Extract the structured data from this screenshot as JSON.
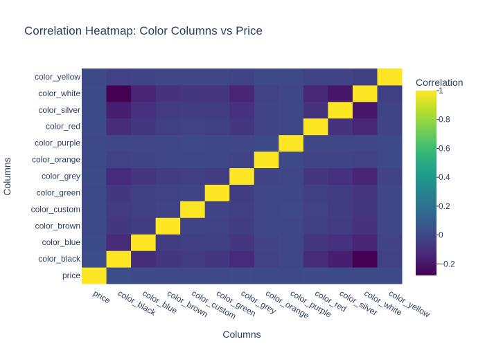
{
  "chart_data": {
    "type": "heatmap",
    "title": "Correlation Heatmap: Color Columns vs Price",
    "xlabel": "Columns",
    "ylabel": "Columns",
    "colorbar_title": "Correlation",
    "colorbar_ticks": [
      "1",
      "0.8",
      "0.6",
      "0.4",
      "0.2",
      "0",
      "−0.2"
    ],
    "colorbar_tick_values": [
      1,
      0.8,
      0.6,
      0.4,
      0.2,
      0,
      -0.2
    ],
    "zlim": [
      -0.28,
      1
    ],
    "colorscale": "Viridis",
    "categories": [
      "price",
      "color_black",
      "color_blue",
      "color_brown",
      "color_custom",
      "color_green",
      "color_grey",
      "color_orange",
      "color_purple",
      "color_red",
      "color_silver",
      "color_white",
      "color_yellow"
    ],
    "matrix": [
      [
        1.0,
        0.02,
        0.01,
        0.0,
        0.0,
        0.0,
        0.01,
        0.0,
        0.0,
        0.01,
        0.01,
        0.01,
        0.0
      ],
      [
        0.02,
        1.0,
        -0.12,
        -0.07,
        -0.06,
        -0.07,
        -0.13,
        -0.03,
        -0.01,
        -0.12,
        -0.17,
        -0.28,
        -0.03
      ],
      [
        0.01,
        -0.12,
        1.0,
        -0.05,
        -0.04,
        -0.04,
        -0.08,
        -0.02,
        -0.01,
        -0.07,
        -0.1,
        -0.15,
        -0.02
      ],
      [
        0.0,
        -0.07,
        -0.05,
        1.0,
        -0.02,
        -0.03,
        -0.05,
        -0.01,
        -0.01,
        -0.04,
        -0.06,
        -0.09,
        -0.01
      ],
      [
        0.0,
        -0.06,
        -0.04,
        -0.02,
        1.0,
        -0.02,
        -0.04,
        -0.01,
        0.0,
        -0.03,
        -0.05,
        -0.07,
        -0.01
      ],
      [
        0.0,
        -0.07,
        -0.04,
        -0.03,
        -0.02,
        1.0,
        -0.05,
        -0.01,
        -0.01,
        -0.04,
        -0.05,
        -0.08,
        -0.01
      ],
      [
        0.01,
        -0.13,
        -0.08,
        -0.05,
        -0.04,
        -0.05,
        1.0,
        -0.02,
        -0.01,
        -0.08,
        -0.1,
        -0.15,
        -0.02
      ],
      [
        0.0,
        -0.03,
        -0.02,
        -0.01,
        -0.01,
        -0.01,
        -0.02,
        1.0,
        0.0,
        -0.02,
        -0.02,
        -0.03,
        0.0
      ],
      [
        0.0,
        -0.01,
        -0.01,
        -0.01,
        0.0,
        -0.01,
        -0.01,
        0.0,
        1.0,
        -0.01,
        -0.01,
        -0.01,
        0.0
      ],
      [
        0.01,
        -0.12,
        -0.07,
        -0.04,
        -0.03,
        -0.04,
        -0.08,
        -0.02,
        -0.01,
        1.0,
        -0.09,
        -0.14,
        -0.02
      ],
      [
        0.01,
        -0.17,
        -0.1,
        -0.06,
        -0.05,
        -0.05,
        -0.1,
        -0.02,
        -0.01,
        -0.09,
        1.0,
        -0.2,
        -0.02
      ],
      [
        0.01,
        -0.28,
        -0.15,
        -0.09,
        -0.07,
        -0.08,
        -0.15,
        -0.03,
        -0.01,
        -0.14,
        -0.2,
        1.0,
        -0.04
      ],
      [
        0.0,
        -0.03,
        -0.02,
        -0.01,
        -0.01,
        -0.01,
        -0.02,
        0.0,
        0.0,
        -0.02,
        -0.02,
        -0.04,
        1.0
      ]
    ]
  }
}
